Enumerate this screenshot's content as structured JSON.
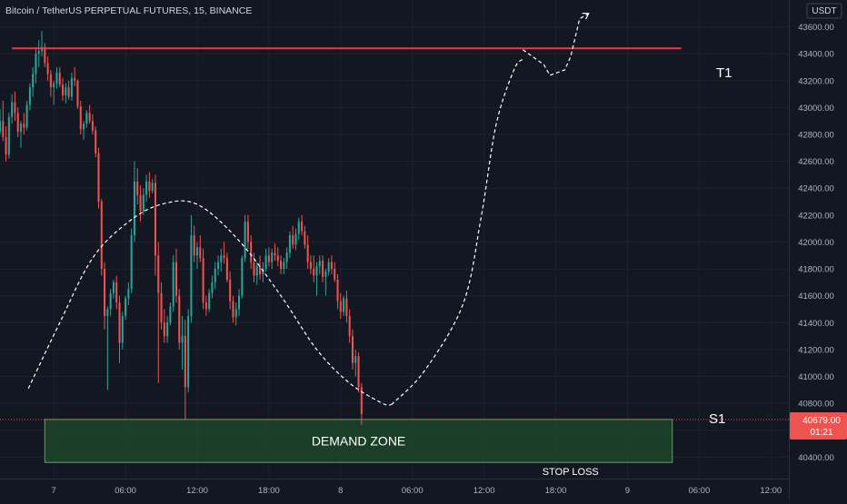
{
  "header": {
    "symbol": "Bitcoin / TetherUS PERPETUAL FUTURES, 15, BINANCE",
    "currency": "USDT"
  },
  "chart_data": {
    "type": "candlestick",
    "interval": "15",
    "exchange": "BINANCE",
    "y_ticks": [
      "43600.00",
      "43400.00",
      "43200.00",
      "43000.00",
      "42800.00",
      "42600.00",
      "42400.00",
      "42200.00",
      "42000.00",
      "41800.00",
      "41600.00",
      "41400.00",
      "41200.00",
      "41000.00",
      "40800.00",
      "40600.00",
      "40400.00"
    ],
    "y_tick_values": [
      43600,
      43400,
      43200,
      43000,
      42800,
      42600,
      42400,
      42200,
      42000,
      41800,
      41600,
      41400,
      41200,
      41000,
      40800,
      40600,
      40400
    ],
    "x_ticks": [
      {
        "label": "7",
        "t": 0
      },
      {
        "label": "06:00",
        "t": 24
      },
      {
        "label": "12:00",
        "t": 48
      },
      {
        "label": "18:00",
        "t": 72
      },
      {
        "label": "8",
        "t": 96
      },
      {
        "label": "06:00",
        "t": 120
      },
      {
        "label": "12:00",
        "t": 144
      },
      {
        "label": "18:00",
        "t": 168
      },
      {
        "label": "9",
        "t": 192
      },
      {
        "label": "06:00",
        "t": 216
      },
      {
        "label": "12:00",
        "t": 240
      }
    ],
    "ylim": [
      40240,
      43800
    ],
    "xlim": [
      -18,
      246
    ],
    "last_price": {
      "label": "40679.00",
      "countdown": "01:21",
      "value": 40679
    },
    "colors": {
      "up": "#26a69a",
      "down": "#ef5350",
      "resistance": "#f23645",
      "zone_fill": "#1f4d2b",
      "zone_border": "#4caf50"
    },
    "resistance": {
      "label": "T1",
      "value": 43440,
      "t_start": -14,
      "t_end": 210
    },
    "support_label": "S1",
    "demand_zone": {
      "label": "DEMAND ZONE",
      "top": 40680,
      "bottom": 40360,
      "t_start": -3,
      "t_end": 207
    },
    "stop_loss": {
      "label": "STOP LOSS"
    },
    "path_arch": [
      [
        -8.5,
        40910
      ],
      [
        2,
        41400
      ],
      [
        13,
        41880
      ],
      [
        25,
        42150
      ],
      [
        36,
        42280
      ],
      [
        48,
        42280
      ],
      [
        62,
        42010
      ],
      [
        76,
        41600
      ],
      [
        88,
        41200
      ],
      [
        99,
        40950
      ],
      [
        110,
        40800
      ],
      [
        113,
        40790
      ]
    ],
    "path_return": [
      [
        113,
        40790
      ],
      [
        124,
        41040
      ],
      [
        137,
        41540
      ],
      [
        143,
        42180
      ],
      [
        148,
        42870
      ],
      [
        154,
        43280
      ],
      [
        157,
        43360
      ]
    ],
    "path_target": [
      [
        157,
        43430
      ],
      [
        164,
        43320
      ],
      [
        166,
        43240
      ],
      [
        171,
        43280
      ],
      [
        173,
        43380
      ],
      [
        176,
        43660
      ],
      [
        179,
        43700
      ]
    ],
    "candles": [
      [
        -18,
        42820,
        42990,
        42800,
        42900
      ],
      [
        -17,
        42900,
        43050,
        42750,
        42780
      ],
      [
        -16,
        42780,
        42860,
        42600,
        42650
      ],
      [
        -15,
        42650,
        42960,
        42620,
        42930
      ],
      [
        -14,
        42930,
        43100,
        42880,
        43040
      ],
      [
        -13,
        43040,
        43120,
        42900,
        42960
      ],
      [
        -12,
        42960,
        43000,
        42780,
        42820
      ],
      [
        -11,
        42820,
        42900,
        42700,
        42880
      ],
      [
        -10,
        42880,
        42960,
        42800,
        42850
      ],
      [
        -9,
        42850,
        43050,
        42830,
        43020
      ],
      [
        -8,
        43020,
        43180,
        42980,
        43150
      ],
      [
        -7,
        43150,
        43300,
        43080,
        43250
      ],
      [
        -6,
        43250,
        43450,
        43180,
        43400
      ],
      [
        -5,
        43400,
        43500,
        43300,
        43420
      ],
      [
        -4,
        43420,
        43570,
        43380,
        43450
      ],
      [
        -3,
        43450,
        43480,
        43300,
        43330
      ],
      [
        -2,
        43330,
        43380,
        43200,
        43250
      ],
      [
        -1,
        43250,
        43280,
        43080,
        43150
      ],
      [
        0,
        43150,
        43200,
        43020,
        43180
      ],
      [
        1,
        43180,
        43300,
        43140,
        43260
      ],
      [
        2,
        43260,
        43300,
        43150,
        43170
      ],
      [
        3,
        43170,
        43220,
        43050,
        43090
      ],
      [
        4,
        43090,
        43180,
        43030,
        43150
      ],
      [
        5,
        43150,
        43200,
        43060,
        43080
      ],
      [
        6,
        43080,
        43260,
        43050,
        43220
      ],
      [
        7,
        43220,
        43300,
        43160,
        43200
      ],
      [
        8,
        43200,
        43210,
        42990,
        43010
      ],
      [
        9,
        43010,
        43050,
        42800,
        42840
      ],
      [
        10,
        42840,
        42900,
        42760,
        42880
      ],
      [
        11,
        42880,
        42980,
        42850,
        42960
      ],
      [
        12,
        42960,
        43020,
        42880,
        42900
      ],
      [
        13,
        42900,
        42950,
        42800,
        42830
      ],
      [
        14,
        42830,
        42860,
        42630,
        42660
      ],
      [
        15,
        42660,
        42700,
        42250,
        42300
      ],
      [
        16,
        42300,
        42320,
        41750,
        41800
      ],
      [
        17,
        41800,
        41850,
        41350,
        41450
      ],
      [
        18,
        41450,
        41520,
        40900,
        41500
      ],
      [
        19,
        41500,
        41650,
        41450,
        41620
      ],
      [
        20,
        41620,
        41720,
        41580,
        41700
      ],
      [
        21,
        41700,
        41750,
        41500,
        41550
      ],
      [
        22,
        41550,
        41600,
        41100,
        41250
      ],
      [
        23,
        41250,
        41480,
        41200,
        41450
      ],
      [
        24,
        41450,
        41600,
        41420,
        41580
      ],
      [
        25,
        41580,
        41700,
        41530,
        41650
      ],
      [
        26,
        41650,
        42100,
        41620,
        42050
      ],
      [
        27,
        42050,
        42600,
        42000,
        42450
      ],
      [
        28,
        42450,
        42550,
        42280,
        42350
      ],
      [
        29,
        42350,
        42420,
        42150,
        42230
      ],
      [
        30,
        42230,
        42400,
        42200,
        42350
      ],
      [
        31,
        42350,
        42500,
        42300,
        42450
      ],
      [
        32,
        42450,
        42520,
        42330,
        42380
      ],
      [
        33,
        42380,
        42470,
        42360,
        42440
      ],
      [
        34,
        42440,
        42500,
        41750,
        41900
      ],
      [
        35,
        41900,
        42000,
        40950,
        41620
      ],
      [
        36,
        41620,
        41700,
        41350,
        41400
      ],
      [
        37,
        41400,
        41500,
        41250,
        41300
      ],
      [
        38,
        41300,
        41450,
        41250,
        41400
      ],
      [
        39,
        41400,
        41550,
        41380,
        41520
      ],
      [
        40,
        41520,
        41900,
        41480,
        41850
      ],
      [
        41,
        41850,
        41950,
        41550,
        41600
      ],
      [
        42,
        41600,
        41650,
        41200,
        41250
      ],
      [
        43,
        41250,
        41450,
        41050,
        41300
      ],
      [
        44,
        41300,
        41420,
        40680,
        40920
      ],
      [
        45,
        40920,
        41500,
        40880,
        41450
      ],
      [
        46,
        41450,
        42200,
        41400,
        42050
      ],
      [
        47,
        42050,
        42120,
        41850,
        41900
      ],
      [
        48,
        41900,
        42000,
        41800,
        41960
      ],
      [
        49,
        41960,
        42050,
        41850,
        41880
      ],
      [
        50,
        41880,
        41950,
        41500,
        41550
      ],
      [
        51,
        41550,
        41600,
        41450,
        41500
      ],
      [
        52,
        41500,
        41650,
        41480,
        41620
      ],
      [
        53,
        41620,
        41750,
        41580,
        41700
      ],
      [
        54,
        41700,
        41850,
        41650,
        41800
      ],
      [
        55,
        41800,
        41900,
        41750,
        41850
      ],
      [
        56,
        41850,
        41950,
        41780,
        41900
      ],
      [
        57,
        41900,
        42000,
        41840,
        41880
      ],
      [
        58,
        41880,
        41920,
        41700,
        41720
      ],
      [
        59,
        41720,
        41780,
        41500,
        41560
      ],
      [
        60,
        41560,
        41600,
        41400,
        41440
      ],
      [
        61,
        41440,
        41550,
        41380,
        41500
      ],
      [
        62,
        41500,
        41650,
        41450,
        41600
      ],
      [
        63,
        41600,
        41900,
        41580,
        41880
      ],
      [
        64,
        41880,
        42200,
        41850,
        42150
      ],
      [
        65,
        42150,
        42200,
        41950,
        42000
      ],
      [
        66,
        42000,
        42050,
        41800,
        41850
      ],
      [
        67,
        41850,
        41920,
        41700,
        41750
      ],
      [
        68,
        41750,
        41850,
        41680,
        41820
      ],
      [
        69,
        41820,
        41900,
        41720,
        41760
      ],
      [
        70,
        41760,
        41850,
        41700,
        41800
      ],
      [
        71,
        41800,
        41950,
        41780,
        41900
      ],
      [
        72,
        41900,
        41960,
        41820,
        41850
      ],
      [
        73,
        41850,
        41950,
        41800,
        41920
      ],
      [
        74,
        41920,
        41990,
        41860,
        41900
      ],
      [
        75,
        41900,
        41960,
        41820,
        41860
      ],
      [
        76,
        41860,
        41900,
        41760,
        41800
      ],
      [
        77,
        41800,
        41880,
        41760,
        41850
      ],
      [
        78,
        41850,
        41960,
        41800,
        41920
      ],
      [
        79,
        41920,
        42080,
        41880,
        42050
      ],
      [
        80,
        42050,
        42120,
        41950,
        41980
      ],
      [
        81,
        41980,
        42100,
        41940,
        42060
      ],
      [
        82,
        42060,
        42180,
        42020,
        42150
      ],
      [
        83,
        42150,
        42200,
        42050,
        42080
      ],
      [
        84,
        42080,
        42120,
        41950,
        41980
      ],
      [
        85,
        41980,
        42050,
        41800,
        41850
      ],
      [
        86,
        41850,
        41900,
        41760,
        41800
      ],
      [
        87,
        41800,
        41900,
        41700,
        41750
      ],
      [
        88,
        41750,
        41850,
        41600,
        41820
      ],
      [
        89,
        41820,
        41900,
        41760,
        41860
      ],
      [
        90,
        41860,
        41900,
        41700,
        41740
      ],
      [
        91,
        41740,
        41800,
        41600,
        41780
      ],
      [
        92,
        41780,
        41880,
        41750,
        41850
      ],
      [
        93,
        41850,
        41900,
        41760,
        41800
      ],
      [
        94,
        41800,
        41850,
        41700,
        41720
      ],
      [
        95,
        41720,
        41760,
        41500,
        41560
      ],
      [
        96,
        41560,
        41620,
        41430,
        41480
      ],
      [
        97,
        41480,
        41600,
        41450,
        41580
      ],
      [
        98,
        41580,
        41640,
        41400,
        41450
      ],
      [
        99,
        41450,
        41500,
        41250,
        41300
      ],
      [
        100,
        41300,
        41350,
        41050,
        41100
      ],
      [
        101,
        41100,
        41200,
        41000,
        41150
      ],
      [
        102,
        41150,
        41180,
        40880,
        40920
      ],
      [
        103,
        40920,
        40950,
        40640,
        40720
      ]
    ]
  }
}
